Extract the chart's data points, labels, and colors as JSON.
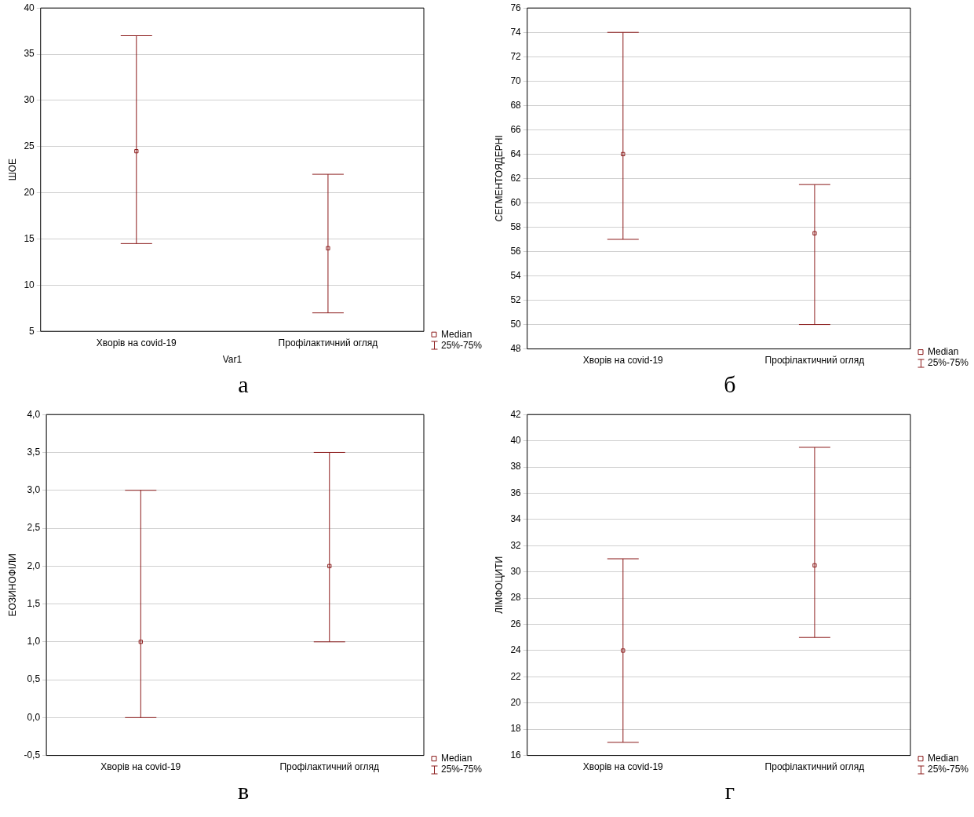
{
  "chart_data": [
    {
      "type": "scatter",
      "ylabel": "ШОЕ",
      "xlabel": "Var1",
      "categories": [
        "Хворів на covid-19",
        "Профілактичний огляд"
      ],
      "series": [
        {
          "name": "Median",
          "color": "#8b1a1a",
          "values": [
            24.5,
            14
          ],
          "errors": [
            [
              14.5,
              37
            ],
            [
              7,
              22
            ]
          ]
        }
      ],
      "ylim": [
        5,
        40
      ],
      "yticks": [
        5,
        10,
        15,
        20,
        25,
        30,
        35,
        40
      ],
      "grid": "y",
      "legend": "bottom right",
      "marker": "square",
      "annotations": [
        "25%-75%",
        "а"
      ]
    },
    {
      "type": "scatter",
      "ylabel": "СЕГМЕНТОЯДЕРНІ",
      "categories": [
        "Хворів на covid-19",
        "Профілактичний огляд"
      ],
      "series": [
        {
          "name": "Median",
          "color": "#8b1a1a",
          "values": [
            64,
            57.5
          ],
          "errors": [
            [
              57,
              74
            ],
            [
              50,
              61.5
            ]
          ]
        }
      ],
      "ylim": [
        48,
        76
      ],
      "yticks": [
        48,
        50,
        52,
        54,
        56,
        58,
        60,
        62,
        64,
        66,
        68,
        70,
        72,
        74,
        76
      ],
      "grid": "y",
      "legend": "bottom right",
      "marker": "square",
      "annotations": [
        "25%-75%",
        "б"
      ]
    },
    {
      "type": "scatter",
      "ylabel": "ЕОЗИНОФІЛИ",
      "categories": [
        "Хворів на covid-19",
        "Профілактичний огляд"
      ],
      "series": [
        {
          "name": "Median",
          "color": "#8b1a1a",
          "values": [
            1,
            2
          ],
          "errors": [
            [
              0,
              3
            ],
            [
              1,
              3.5
            ]
          ]
        }
      ],
      "ylim": [
        -0.5,
        4
      ],
      "yticks": [
        {
          "value": -0.5,
          "label": "-0,5"
        },
        {
          "value": 0,
          "label": "0,0"
        },
        {
          "value": 0.5,
          "label": "0,5"
        },
        {
          "value": 1,
          "label": "1,0"
        },
        {
          "value": 1.5,
          "label": "1,5"
        },
        {
          "value": 2,
          "label": "2,0"
        },
        {
          "value": 2.5,
          "label": "2,5"
        },
        {
          "value": 3,
          "label": "3,0"
        },
        {
          "value": 3.5,
          "label": "3,5"
        },
        {
          "value": 4,
          "label": "4,0"
        }
      ],
      "grid": "y",
      "legend": "bottom right",
      "marker": "square",
      "annotations": [
        "25%-75%",
        "в"
      ]
    },
    {
      "type": "scatter",
      "ylabel": "ЛІМФОЦИТИ",
      "categories": [
        "Хворів на covid-19",
        "Профілактичний огляд"
      ],
      "series": [
        {
          "name": "Median",
          "color": "#8b1a1a",
          "values": [
            24,
            30.5
          ],
          "errors": [
            [
              17,
              31
            ],
            [
              25,
              39.5
            ]
          ]
        }
      ],
      "ylim": [
        16,
        42
      ],
      "yticks": [
        16,
        18,
        20,
        22,
        24,
        26,
        28,
        30,
        32,
        34,
        36,
        38,
        40,
        42
      ],
      "grid": "y",
      "legend": "bottom right",
      "marker": "square",
      "annotations": [
        "25%-75%",
        "г"
      ]
    }
  ]
}
